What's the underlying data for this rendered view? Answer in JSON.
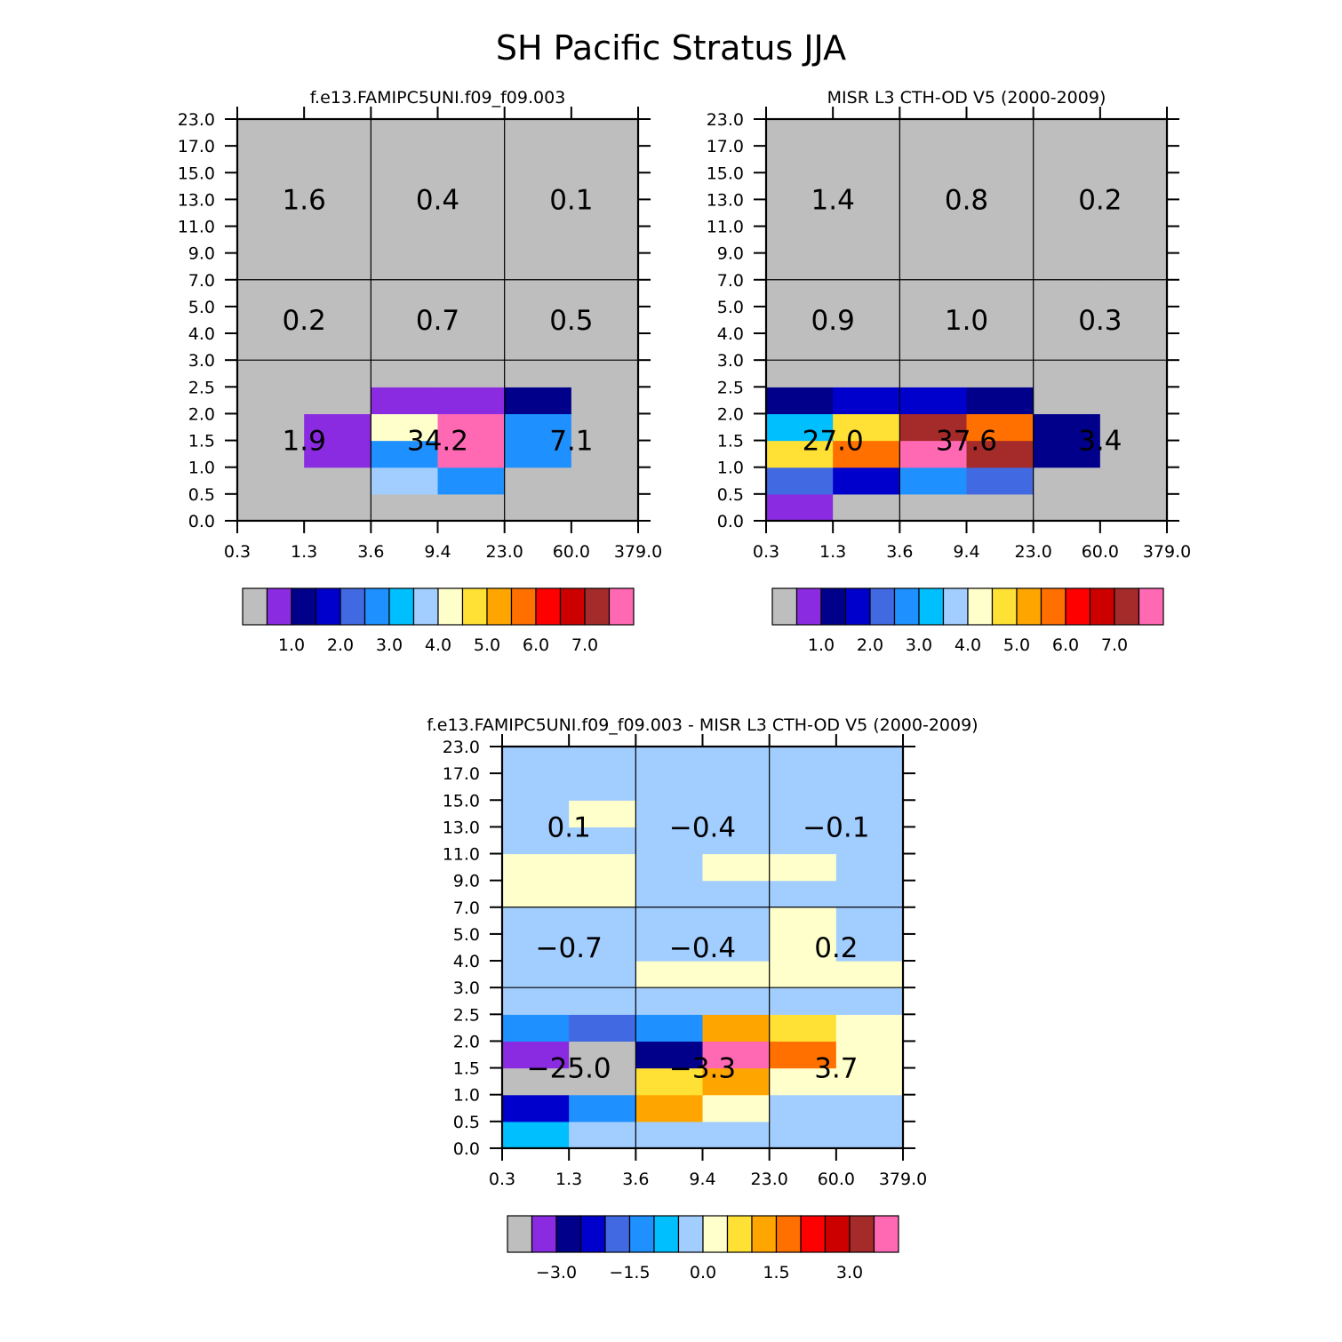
{
  "page_title": "SH Pacific Stratus JJA",
  "palette": [
    "#bebebe",
    "#8a2be2",
    "#00008b",
    "#0000cd",
    "#4169e1",
    "#1e90ff",
    "#00bfff",
    "#a2cdff",
    "#ffffcc",
    "#ffe135",
    "#ffa500",
    "#ff7000",
    "#ff0000",
    "#cd0000",
    "#a52a2a",
    "#ff69b4"
  ],
  "chart_data": [
    {
      "type": "heatmap",
      "title": "f.e13.FAMIPC5UNI.f09_f09.003",
      "x_tick_labels": [
        "0.3",
        "1.3",
        "3.6",
        "9.4",
        "23.0",
        "60.0",
        "379.0"
      ],
      "y_tick_labels": [
        "0.0",
        "0.5",
        "1.0",
        "1.5",
        "2.0",
        "2.5",
        "3.0",
        "4.0",
        "5.0",
        "7.0",
        "9.0",
        "11.0",
        "13.0",
        "15.0",
        "17.0",
        "23.0"
      ],
      "grid_rows_bottom_to_top": [
        [
          0,
          0,
          0,
          0,
          0,
          0
        ],
        [
          0,
          0,
          7,
          5,
          0,
          0
        ],
        [
          0,
          1,
          5,
          15,
          5,
          0
        ],
        [
          0,
          1,
          8,
          15,
          5,
          0
        ],
        [
          0,
          0,
          1,
          1,
          2,
          0
        ],
        [
          0,
          0,
          0,
          0,
          0,
          0
        ],
        [
          0,
          0,
          0,
          0,
          0,
          0
        ],
        [
          0,
          0,
          0,
          0,
          0,
          0
        ],
        [
          0,
          0,
          0,
          0,
          0,
          0
        ],
        [
          0,
          0,
          0,
          0,
          0,
          0
        ],
        [
          0,
          0,
          0,
          0,
          0,
          0
        ],
        [
          0,
          0,
          0,
          0,
          0,
          0
        ],
        [
          0,
          0,
          0,
          0,
          0,
          0
        ],
        [
          0,
          0,
          0,
          0,
          0,
          0
        ],
        [
          0,
          0,
          0,
          0,
          0,
          0
        ]
      ],
      "group_values": [
        {
          "row": "low",
          "col": "thin",
          "label": "1.9"
        },
        {
          "row": "low",
          "col": "medium",
          "label": "34.2"
        },
        {
          "row": "low",
          "col": "thick",
          "label": "7.1"
        },
        {
          "row": "mid",
          "col": "thin",
          "label": "0.2"
        },
        {
          "row": "mid",
          "col": "medium",
          "label": "0.7"
        },
        {
          "row": "mid",
          "col": "thick",
          "label": "0.5"
        },
        {
          "row": "high",
          "col": "thin",
          "label": "1.6"
        },
        {
          "row": "high",
          "col": "medium",
          "label": "0.4"
        },
        {
          "row": "high",
          "col": "thick",
          "label": "0.1"
        }
      ],
      "colorbar": {
        "tick_labels": [
          "1.0",
          "2.0",
          "3.0",
          "4.0",
          "5.0",
          "6.0",
          "7.0"
        ]
      }
    },
    {
      "type": "heatmap",
      "title": "MISR L3 CTH-OD V5 (2000-2009)",
      "x_tick_labels": [
        "0.3",
        "1.3",
        "3.6",
        "9.4",
        "23.0",
        "60.0",
        "379.0"
      ],
      "y_tick_labels": [
        "0.0",
        "0.5",
        "1.0",
        "1.5",
        "2.0",
        "2.5",
        "3.0",
        "4.0",
        "5.0",
        "7.0",
        "9.0",
        "11.0",
        "13.0",
        "15.0",
        "17.0",
        "23.0"
      ],
      "grid_rows_bottom_to_top": [
        [
          1,
          0,
          0,
          0,
          0,
          0
        ],
        [
          4,
          3,
          5,
          4,
          0,
          0
        ],
        [
          9,
          11,
          15,
          14,
          2,
          0
        ],
        [
          6,
          9,
          14,
          11,
          2,
          0
        ],
        [
          2,
          3,
          3,
          2,
          0,
          0
        ],
        [
          0,
          0,
          0,
          0,
          0,
          0
        ],
        [
          0,
          0,
          0,
          0,
          0,
          0
        ],
        [
          0,
          0,
          0,
          0,
          0,
          0
        ],
        [
          0,
          0,
          0,
          0,
          0,
          0
        ],
        [
          0,
          0,
          0,
          0,
          0,
          0
        ],
        [
          0,
          0,
          0,
          0,
          0,
          0
        ],
        [
          0,
          0,
          0,
          0,
          0,
          0
        ],
        [
          0,
          0,
          0,
          0,
          0,
          0
        ],
        [
          0,
          0,
          0,
          0,
          0,
          0
        ],
        [
          0,
          0,
          0,
          0,
          0,
          0
        ]
      ],
      "group_values": [
        {
          "row": "low",
          "col": "thin",
          "label": "27.0"
        },
        {
          "row": "low",
          "col": "medium",
          "label": "37.6"
        },
        {
          "row": "low",
          "col": "thick",
          "label": "3.4"
        },
        {
          "row": "mid",
          "col": "thin",
          "label": "0.9"
        },
        {
          "row": "mid",
          "col": "medium",
          "label": "1.0"
        },
        {
          "row": "mid",
          "col": "thick",
          "label": "0.3"
        },
        {
          "row": "high",
          "col": "thin",
          "label": "1.4"
        },
        {
          "row": "high",
          "col": "medium",
          "label": "0.8"
        },
        {
          "row": "high",
          "col": "thick",
          "label": "0.2"
        }
      ],
      "colorbar": {
        "tick_labels": [
          "1.0",
          "2.0",
          "3.0",
          "4.0",
          "5.0",
          "6.0",
          "7.0"
        ]
      }
    },
    {
      "type": "heatmap",
      "title": "f.e13.FAMIPC5UNI.f09_f09.003 - MISR L3 CTH-OD V5 (2000-2009)",
      "x_tick_labels": [
        "0.3",
        "1.3",
        "3.6",
        "9.4",
        "23.0",
        "60.0",
        "379.0"
      ],
      "y_tick_labels": [
        "0.0",
        "0.5",
        "1.0",
        "1.5",
        "2.0",
        "2.5",
        "3.0",
        "4.0",
        "5.0",
        "7.0",
        "9.0",
        "11.0",
        "13.0",
        "15.0",
        "17.0",
        "23.0"
      ],
      "grid_rows_bottom_to_top": [
        [
          6,
          7,
          7,
          7,
          7,
          7
        ],
        [
          3,
          5,
          10,
          8,
          7,
          7
        ],
        [
          0,
          0,
          9,
          10,
          8,
          8
        ],
        [
          1,
          0,
          2,
          15,
          11,
          8
        ],
        [
          5,
          4,
          5,
          10,
          9,
          8
        ],
        [
          7,
          7,
          7,
          7,
          7,
          7
        ],
        [
          7,
          7,
          8,
          8,
          8,
          8
        ],
        [
          7,
          7,
          7,
          7,
          8,
          7
        ],
        [
          7,
          7,
          7,
          7,
          8,
          7
        ],
        [
          8,
          8,
          7,
          7,
          7,
          7
        ],
        [
          8,
          8,
          7,
          8,
          8,
          7
        ],
        [
          7,
          7,
          7,
          7,
          7,
          7
        ],
        [
          7,
          8,
          7,
          7,
          7,
          7
        ],
        [
          7,
          7,
          7,
          7,
          7,
          7
        ],
        [
          7,
          7,
          7,
          7,
          7,
          7
        ]
      ],
      "group_values": [
        {
          "row": "low",
          "col": "thin",
          "label": "−25.0"
        },
        {
          "row": "low",
          "col": "medium",
          "label": "−3.3"
        },
        {
          "row": "low",
          "col": "thick",
          "label": "3.7"
        },
        {
          "row": "mid",
          "col": "thin",
          "label": "−0.7"
        },
        {
          "row": "mid",
          "col": "medium",
          "label": "−0.4"
        },
        {
          "row": "mid",
          "col": "thick",
          "label": "0.2"
        },
        {
          "row": "high",
          "col": "thin",
          "label": "0.1"
        },
        {
          "row": "high",
          "col": "medium",
          "label": "−0.4"
        },
        {
          "row": "high",
          "col": "thick",
          "label": "−0.1"
        }
      ],
      "colorbar": {
        "tick_labels": [
          "−3.0",
          "−1.5",
          "0.0",
          "1.5",
          "3.0"
        ]
      }
    }
  ]
}
